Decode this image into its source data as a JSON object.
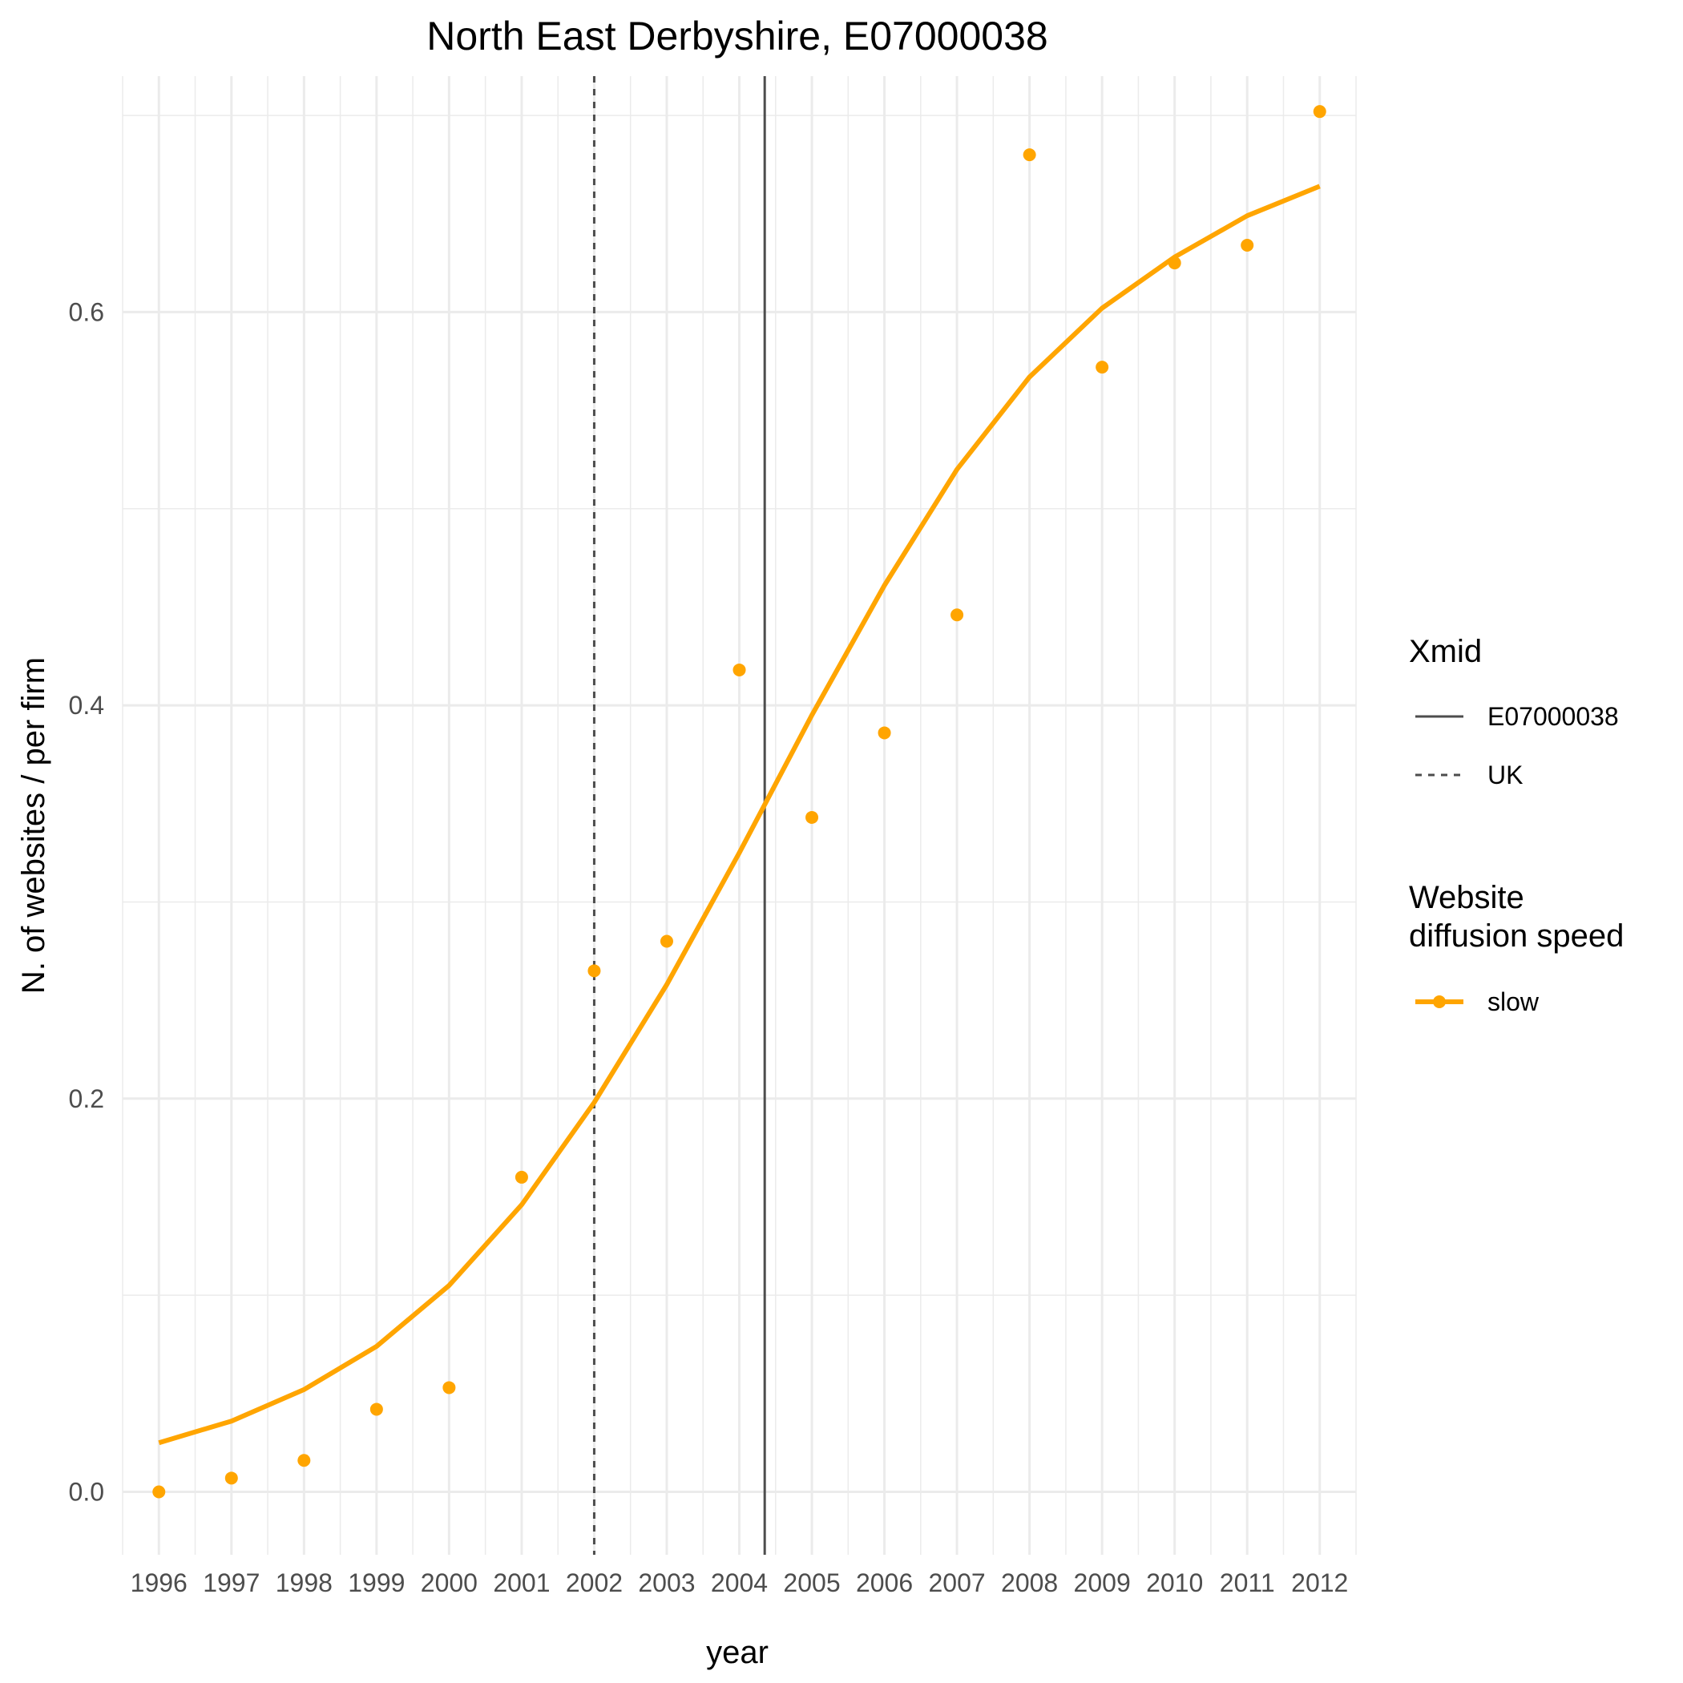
{
  "chart_data": {
    "type": "line",
    "title": "North East Derbyshire, E07000038",
    "xlabel": "year",
    "ylabel": "N. of websites / per firm",
    "x": [
      1996,
      1997,
      1998,
      1999,
      2000,
      2001,
      2002,
      2003,
      2004,
      2005,
      2006,
      2007,
      2008,
      2009,
      2010,
      2011,
      2012
    ],
    "x_tick_labels": [
      "1996",
      "1997",
      "1998",
      "1999",
      "2000",
      "2001",
      "2002",
      "2003",
      "2004",
      "2005",
      "2006",
      "2007",
      "2008",
      "2009",
      "2010",
      "2011",
      "2012"
    ],
    "y_ticks": [
      0.0,
      0.2,
      0.4,
      0.6
    ],
    "y_tick_labels": [
      "0.0",
      "0.2",
      "0.4",
      "0.6"
    ],
    "xlim": [
      1995.5,
      2012.5
    ],
    "ylim": [
      -0.032,
      0.72
    ],
    "grid": true,
    "series": [
      {
        "name": "slow",
        "color": "#FFA500",
        "fitted": [
          0.025,
          0.036,
          0.052,
          0.074,
          0.105,
          0.146,
          0.198,
          0.258,
          0.325,
          0.395,
          0.461,
          0.52,
          0.567,
          0.602,
          0.628,
          0.649,
          0.664
        ],
        "observed": [
          0.0,
          0.007,
          0.016,
          0.042,
          0.053,
          0.16,
          0.265,
          0.28,
          0.418,
          0.343,
          0.386,
          0.446,
          0.68,
          0.572,
          0.625,
          0.634,
          0.702
        ]
      }
    ],
    "vertical_lines": [
      {
        "name": "E07000038",
        "x": 2004.35,
        "style": "solid",
        "color": "#4d4d4d"
      },
      {
        "name": "UK",
        "x": 2002.0,
        "style": "dashed",
        "color": "#4d4d4d"
      }
    ],
    "legend": {
      "placement": "right",
      "xmid_title": "Xmid",
      "xmid_items": [
        "E07000038",
        "UK"
      ],
      "speed_title_line1": "Website",
      "speed_title_line2": "diffusion speed",
      "speed_items": [
        "slow"
      ]
    }
  }
}
